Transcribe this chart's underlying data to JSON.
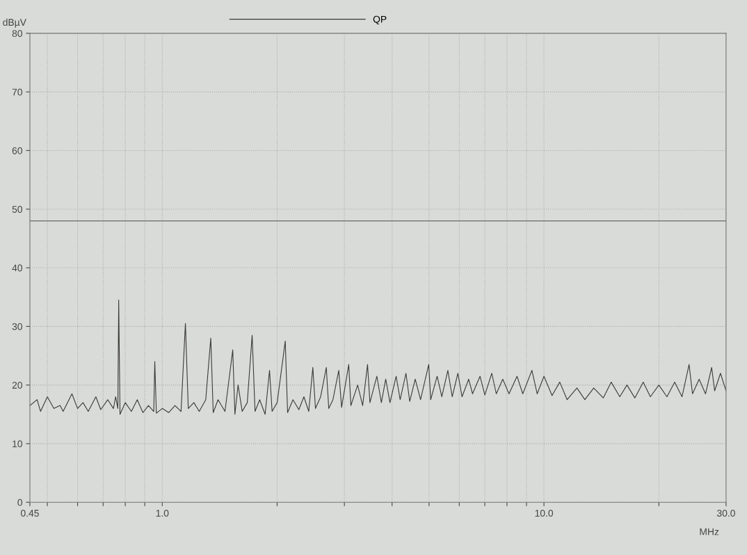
{
  "chart_data": {
    "type": "line",
    "xlabel": "MHz",
    "ylabel": "dBµV",
    "log": "x",
    "grid": true,
    "legend": "top",
    "line_style": "solid",
    "marker": "none",
    "xlim": [
      0.45,
      30.0
    ],
    "ylim": [
      0,
      80
    ],
    "xticks": [
      {
        "value": 0.45,
        "label": "0.45"
      },
      {
        "value": 0.5,
        "label": null
      },
      {
        "value": 0.6,
        "label": null
      },
      {
        "value": 0.7,
        "label": null
      },
      {
        "value": 0.8,
        "label": null
      },
      {
        "value": 0.9,
        "label": null
      },
      {
        "value": 1.0,
        "label": "1.0"
      },
      {
        "value": 2,
        "label": null
      },
      {
        "value": 3,
        "label": null
      },
      {
        "value": 4,
        "label": null
      },
      {
        "value": 5,
        "label": null
      },
      {
        "value": 6,
        "label": null
      },
      {
        "value": 7,
        "label": null
      },
      {
        "value": 8,
        "label": null
      },
      {
        "value": 9,
        "label": null
      },
      {
        "value": 10.0,
        "label": "10.0"
      },
      {
        "value": 20,
        "label": null
      },
      {
        "value": 30.0,
        "label": "30.0"
      }
    ],
    "yticks": [
      0,
      10,
      20,
      30,
      40,
      50,
      60,
      70,
      80
    ],
    "ref_lines": [
      {
        "axis": "y",
        "value": 48,
        "color": "#6a6a66",
        "line_style": "solid"
      }
    ],
    "series": [
      {
        "name": "QP",
        "color": "#3a3a35",
        "x": [
          0.45,
          0.47,
          0.48,
          0.5,
          0.52,
          0.54,
          0.55,
          0.58,
          0.6,
          0.62,
          0.64,
          0.67,
          0.69,
          0.72,
          0.745,
          0.755,
          0.765,
          0.769,
          0.775,
          0.8,
          0.83,
          0.86,
          0.89,
          0.92,
          0.95,
          0.956,
          0.965,
          1.0,
          1.04,
          1.08,
          1.12,
          1.15,
          1.17,
          1.21,
          1.25,
          1.3,
          1.34,
          1.36,
          1.4,
          1.46,
          1.53,
          1.55,
          1.58,
          1.62,
          1.67,
          1.72,
          1.75,
          1.8,
          1.86,
          1.91,
          1.94,
          2.0,
          2.1,
          2.13,
          2.2,
          2.28,
          2.35,
          2.42,
          2.48,
          2.52,
          2.6,
          2.69,
          2.73,
          2.8,
          2.9,
          2.95,
          3.08,
          3.12,
          3.25,
          3.35,
          3.45,
          3.5,
          3.65,
          3.75,
          3.85,
          3.95,
          4.1,
          4.2,
          4.35,
          4.45,
          4.6,
          4.75,
          4.99,
          5.05,
          5.25,
          5.4,
          5.6,
          5.75,
          5.95,
          6.1,
          6.35,
          6.5,
          6.8,
          7.0,
          7.3,
          7.5,
          7.8,
          8.1,
          8.5,
          8.8,
          9.3,
          9.6,
          10.0,
          10.5,
          11.0,
          11.5,
          12.2,
          12.8,
          13.5,
          14.3,
          15.0,
          15.8,
          16.5,
          17.3,
          18.2,
          19.0,
          20.0,
          21.0,
          22.0,
          23.0,
          24.0,
          24.5,
          25.5,
          26.5,
          27.5,
          28.0,
          29.0,
          30.0
        ],
        "values": [
          16.5,
          17.5,
          15.5,
          18,
          16,
          16.5,
          15.5,
          18.5,
          16,
          17,
          15.5,
          18,
          15.8,
          17.5,
          16,
          18,
          16,
          34.5,
          15,
          17,
          15.5,
          17.5,
          15.3,
          16.5,
          15.5,
          24,
          15.2,
          16,
          15.3,
          16.5,
          15.5,
          30.5,
          16,
          17,
          15.5,
          17.5,
          28,
          15.3,
          17.5,
          15.5,
          26,
          15,
          20,
          15.5,
          17,
          28.5,
          15.5,
          17.5,
          15,
          22.5,
          15.5,
          17,
          27.5,
          15.3,
          17.5,
          15.8,
          18,
          15.5,
          23,
          16,
          18,
          23,
          16,
          17.5,
          22.5,
          16.2,
          23.5,
          16.5,
          20,
          16.5,
          23.5,
          17,
          21.5,
          17,
          21,
          17,
          21.5,
          17.5,
          22,
          17.2,
          21,
          17.5,
          23.5,
          17.5,
          21.5,
          18,
          22.5,
          18,
          22,
          18,
          21,
          18.5,
          21.5,
          18.3,
          22,
          18.5,
          21,
          18.5,
          21.5,
          18.5,
          22.5,
          18.5,
          21.5,
          18.2,
          20.5,
          17.5,
          19.5,
          17.5,
          19.5,
          17.8,
          20.5,
          18,
          20,
          17.8,
          20.5,
          18,
          20,
          18,
          20.5,
          18,
          23.5,
          18.5,
          21,
          18.5,
          23,
          19,
          22,
          19
        ]
      }
    ]
  }
}
